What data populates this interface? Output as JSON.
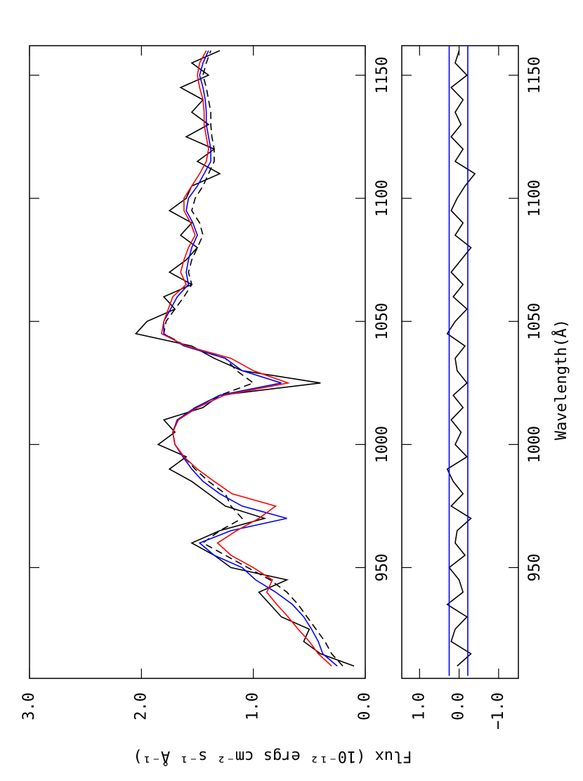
{
  "chart_data": [
    {
      "type": "line",
      "ylabel": "Flux (10⁻¹² ergs cm⁻² s⁻¹ Å⁻¹)",
      "xlim": [
        905,
        1162
      ],
      "ylim": [
        0,
        3
      ],
      "xticks": [
        950,
        1000,
        1050,
        1100,
        1150
      ],
      "yticks": [
        {
          "value": 0,
          "label": "0.0"
        },
        {
          "value": 1,
          "label": "1.0"
        },
        {
          "value": 2,
          "label": "2.0"
        },
        {
          "value": 3,
          "label": "3.0"
        }
      ],
      "x": [
        910,
        915,
        920,
        925,
        930,
        935,
        940,
        945,
        950,
        955,
        960,
        965,
        970,
        975,
        980,
        985,
        990,
        995,
        1000,
        1005,
        1010,
        1015,
        1020,
        1025,
        1030,
        1035,
        1040,
        1045,
        1050,
        1055,
        1060,
        1065,
        1070,
        1075,
        1080,
        1085,
        1090,
        1095,
        1100,
        1105,
        1110,
        1115,
        1120,
        1125,
        1130,
        1135,
        1140,
        1145,
        1150,
        1155,
        1160
      ],
      "series": [
        {
          "color": "#000000",
          "values": [
            0.1,
            0.4,
            0.55,
            0.5,
            0.75,
            0.85,
            0.95,
            0.7,
            1.2,
            1.35,
            1.55,
            1.3,
            0.9,
            1.25,
            1.4,
            1.55,
            1.75,
            1.6,
            1.85,
            1.7,
            1.8,
            1.45,
            1.3,
            0.4,
            1.1,
            1.35,
            1.55,
            2.05,
            1.95,
            1.7,
            1.8,
            1.55,
            1.75,
            1.6,
            1.5,
            1.65,
            1.55,
            1.75,
            1.6,
            1.55,
            1.3,
            1.5,
            1.35,
            1.6,
            1.4,
            1.55,
            1.45,
            1.65,
            1.4,
            1.55,
            1.3
          ]
        },
        {
          "color": "#000000",
          "dashed": true,
          "values": [
            0.2,
            0.3,
            0.36,
            0.44,
            0.52,
            0.6,
            0.7,
            0.85,
            1.05,
            1.25,
            1.45,
            1.3,
            1.1,
            1.2,
            1.25,
            1.4,
            1.52,
            1.62,
            1.7,
            1.72,
            1.68,
            1.52,
            1.3,
            1.0,
            1.15,
            1.25,
            1.6,
            1.8,
            1.78,
            1.7,
            1.62,
            1.55,
            1.58,
            1.55,
            1.5,
            1.45,
            1.48,
            1.55,
            1.52,
            1.45,
            1.4,
            1.35,
            1.35,
            1.37,
            1.38,
            1.38,
            1.4,
            1.42,
            1.45,
            1.42,
            1.38
          ]
        },
        {
          "color": "#0000ff",
          "values": [
            0.25,
            0.38,
            0.42,
            0.48,
            0.55,
            0.65,
            0.8,
            0.98,
            1.1,
            1.35,
            1.48,
            1.2,
            0.7,
            1.1,
            1.3,
            1.45,
            1.55,
            1.63,
            1.7,
            1.72,
            1.68,
            1.52,
            1.3,
            0.75,
            1.1,
            1.25,
            1.62,
            1.8,
            1.8,
            1.74,
            1.68,
            1.58,
            1.6,
            1.58,
            1.55,
            1.5,
            1.54,
            1.6,
            1.58,
            1.5,
            1.44,
            1.38,
            1.38,
            1.4,
            1.42,
            1.42,
            1.43,
            1.45,
            1.48,
            1.45,
            1.4
          ]
        },
        {
          "color": "#ff0000",
          "values": [
            0.3,
            0.42,
            0.5,
            0.6,
            0.69,
            0.79,
            0.88,
            0.83,
            1.0,
            1.2,
            1.32,
            1.15,
            0.95,
            0.8,
            1.19,
            1.35,
            1.5,
            1.62,
            1.7,
            1.72,
            1.67,
            1.5,
            1.26,
            0.69,
            1.0,
            1.2,
            1.6,
            1.82,
            1.8,
            1.76,
            1.72,
            1.6,
            1.65,
            1.62,
            1.58,
            1.52,
            1.56,
            1.62,
            1.62,
            1.55,
            1.48,
            1.42,
            1.4,
            1.42,
            1.44,
            1.44,
            1.45,
            1.48,
            1.5,
            1.48,
            1.42
          ]
        }
      ]
    },
    {
      "type": "line",
      "xlabel": "Wavelength(Å)",
      "xlim": [
        905,
        1162
      ],
      "ylim": [
        -1.5,
        1.45
      ],
      "xticks": [
        950,
        1000,
        1050,
        1100,
        1150
      ],
      "yticks": [
        {
          "value": -1,
          "label": "−1.0"
        },
        {
          "value": 0,
          "label": "0.0"
        },
        {
          "value": 1,
          "label": "1.0"
        }
      ],
      "x": [
        910,
        915,
        920,
        925,
        930,
        935,
        940,
        945,
        950,
        955,
        960,
        965,
        970,
        975,
        980,
        985,
        990,
        995,
        1000,
        1005,
        1010,
        1015,
        1020,
        1025,
        1030,
        1035,
        1040,
        1045,
        1050,
        1055,
        1060,
        1065,
        1070,
        1075,
        1080,
        1085,
        1090,
        1095,
        1100,
        1105,
        1110,
        1115,
        1120,
        1125,
        1130,
        1135,
        1140,
        1145,
        1150,
        1155,
        1160
      ],
      "series": [
        {
          "color": "#000000",
          "values": [
            0.05,
            -0.3,
            0.2,
            0.1,
            -0.2,
            0.3,
            -0.1,
            0.0,
            0.25,
            -0.15,
            0.1,
            0.05,
            -0.3,
            0.2,
            -0.1,
            0.15,
            0.3,
            -0.2,
            0.1,
            -0.05,
            0.2,
            -0.1,
            0.15,
            -0.2,
            0.05,
            0.1,
            -0.15,
            0.3,
            0.1,
            -0.2,
            0.15,
            -0.1,
            0.2,
            -0.05,
            -0.3,
            0.1,
            -0.1,
            0.2,
            0.05,
            -0.15,
            -0.4,
            0.1,
            -0.1,
            0.2,
            -0.05,
            0.1,
            -0.1,
            0.2,
            -0.2,
            0.1,
            0.0
          ]
        },
        {
          "color": "#0000ff",
          "x": [
            906,
            1162
          ],
          "values": [
            0.25,
            0.25
          ]
        },
        {
          "color": "#0000ff",
          "x": [
            906,
            1162
          ],
          "values": [
            -0.22,
            -0.22
          ]
        }
      ]
    }
  ]
}
